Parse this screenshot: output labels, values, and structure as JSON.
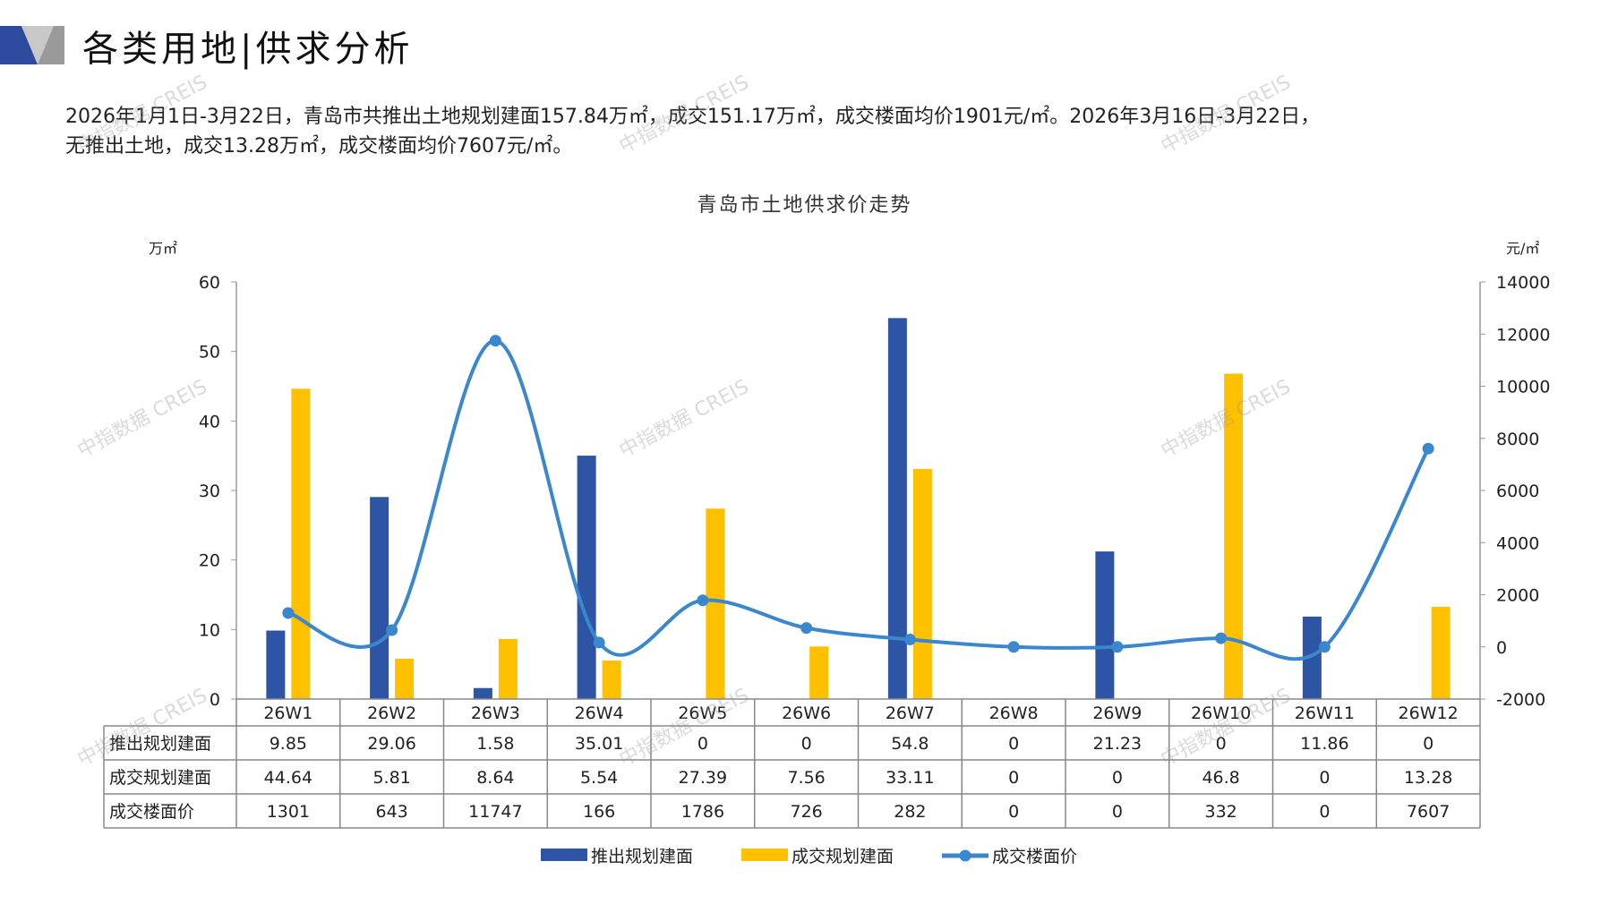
{
  "header": {
    "title": "各类用地|供求分析"
  },
  "summary": [
    "2026年1月1日-3月22日，青岛市共推出土地规划建面157.84万㎡，成交151.17万㎡，成交楼面均价1901元/㎡。2026年3月16日-3月22日，",
    "无推出土地，成交13.28万㎡，成交楼面均价7607元/㎡。"
  ],
  "watermark": "中指数据 CREIS",
  "colors": {
    "supply": "#2E55A5",
    "deal": "#FFC000",
    "price": "#3A87CE",
    "brand_blue": "#2E4A9E",
    "brand_gray": "#B8B8B8"
  },
  "chart_data": {
    "type": "bar+line",
    "title": "青岛市土地供求价走势",
    "ylabel_left": "万㎡",
    "ylabel_right": "元/㎡",
    "ylim_left": [
      0,
      60
    ],
    "yticks_left": [
      "0",
      "10",
      "20",
      "30",
      "40",
      "50",
      "60"
    ],
    "ylim_right": [
      -2000,
      14000
    ],
    "yticks_right": [
      "-2000",
      "0",
      "2000",
      "4000",
      "6000",
      "8000",
      "10000",
      "12000",
      "14000"
    ],
    "categories": [
      "26W1",
      "26W2",
      "26W3",
      "26W4",
      "26W5",
      "26W6",
      "26W7",
      "26W8",
      "26W9",
      "26W10",
      "26W11",
      "26W12"
    ],
    "series": [
      {
        "name": "推出规划建面",
        "type": "bar",
        "axis": "left",
        "values": [
          9.85,
          29.06,
          1.58,
          35.01,
          0,
          0,
          54.8,
          0,
          21.23,
          0,
          11.86,
          0
        ],
        "labels": [
          "9.85",
          "29.06",
          "1.58",
          "35.01",
          "0",
          "0",
          "54.8",
          "0",
          "21.23",
          "0",
          "11.86",
          "0"
        ]
      },
      {
        "name": "成交规划建面",
        "type": "bar",
        "axis": "left",
        "values": [
          44.64,
          5.81,
          8.64,
          5.54,
          27.39,
          7.56,
          33.11,
          0,
          0,
          46.8,
          0,
          13.28
        ],
        "labels": [
          "44.64",
          "5.81",
          "8.64",
          "5.54",
          "27.39",
          "7.56",
          "33.11",
          "0",
          "0",
          "46.8",
          "0",
          "13.28"
        ]
      },
      {
        "name": "成交楼面价",
        "type": "line",
        "axis": "right",
        "values": [
          1301,
          643,
          11747,
          166,
          1786,
          726,
          282,
          0,
          0,
          332,
          0,
          7607
        ],
        "labels": [
          "1301",
          "643",
          "11747",
          "166",
          "1786",
          "726",
          "282",
          "0",
          "0",
          "332",
          "0",
          "7607"
        ]
      }
    ],
    "data_table": true,
    "legend": "bottom",
    "grid": false
  }
}
